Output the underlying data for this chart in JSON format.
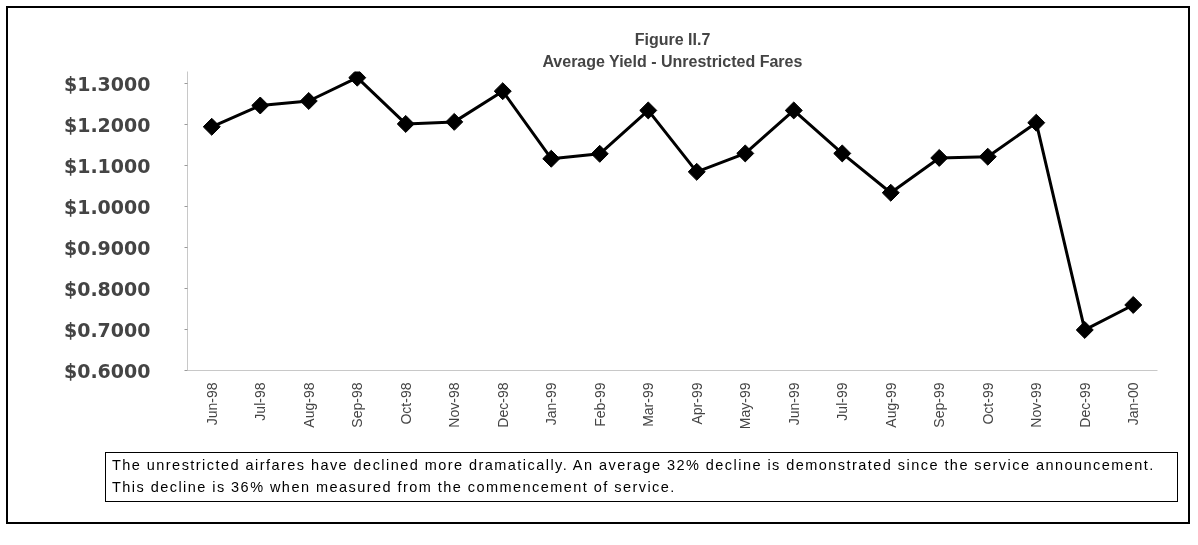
{
  "chart_data": {
    "type": "line",
    "title": "Figure II.7",
    "subtitle": "Average Yield - Unrestricted Fares",
    "categories": [
      "Jun-98",
      "Jul-98",
      "Aug-98",
      "Sep-98",
      "Oct-98",
      "Nov-98",
      "Dec-98",
      "Jan-99",
      "Feb-99",
      "Mar-99",
      "Apr-99",
      "May-99",
      "Jun-99",
      "Jul-99",
      "Aug-99",
      "Sep-99",
      "Oct-99",
      "Nov-99",
      "Dec-99",
      "Jan-00"
    ],
    "series": [
      {
        "color": "#000000",
        "values": [
          1.195,
          1.247,
          1.258,
          1.315,
          1.202,
          1.207,
          1.282,
          1.117,
          1.129,
          1.235,
          1.085,
          1.13,
          1.235,
          1.13,
          1.034,
          1.119,
          1.122,
          1.205,
          0.699,
          0.76
        ]
      }
    ],
    "ylim": [
      0.6,
      1.33
    ],
    "yticks": [
      {
        "value": 0.6,
        "label": "$0.6000"
      },
      {
        "value": 0.7,
        "label": "$0.7000"
      },
      {
        "value": 0.8,
        "label": "$0.8000"
      },
      {
        "value": 0.9,
        "label": "$0.9000"
      },
      {
        "value": 1.0,
        "label": "$1.0000"
      },
      {
        "value": 1.1,
        "label": "$1.1000"
      },
      {
        "value": 1.2,
        "label": "$1.2000"
      },
      {
        "value": 1.3,
        "label": "$1.3000"
      }
    ],
    "marker": "diamond",
    "line_style": "solid",
    "annotations": [
      "The unrestricted airfares have declined more dramatically. An average 32% decline is demonstrated since the service announcement. This decline is 36% when measured from the commencement of service."
    ]
  }
}
